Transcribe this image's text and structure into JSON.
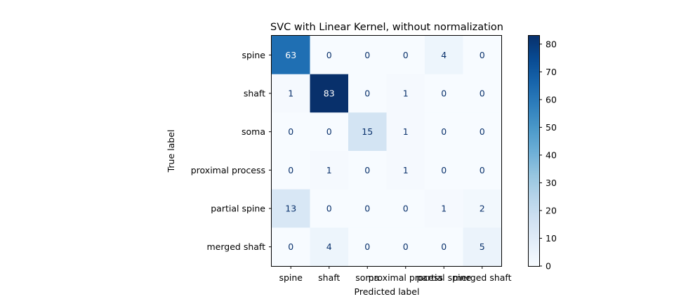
{
  "chart_data": {
    "type": "heatmap",
    "title": "SVC with Linear Kernel, without normalization",
    "xlabel": "Predicted label",
    "ylabel": "True label",
    "x_categories": [
      "spine",
      "shaft",
      "soma",
      "proximal process",
      "partial spine",
      "merged shaft"
    ],
    "y_categories": [
      "spine",
      "shaft",
      "soma",
      "proximal process",
      "partial spine",
      "merged shaft"
    ],
    "values": [
      [
        63,
        0,
        0,
        0,
        4,
        0
      ],
      [
        1,
        83,
        0,
        1,
        0,
        0
      ],
      [
        0,
        0,
        15,
        1,
        0,
        0
      ],
      [
        0,
        1,
        0,
        1,
        0,
        0
      ],
      [
        13,
        0,
        0,
        0,
        1,
        2
      ],
      [
        0,
        4,
        0,
        0,
        0,
        5
      ]
    ],
    "colormap": "Blues",
    "value_range": [
      0,
      83
    ],
    "colorbar_ticks": [
      0,
      10,
      20,
      30,
      40,
      50,
      60,
      70,
      80
    ]
  },
  "colors": {
    "text_dark": "#08306b",
    "text_light": "#ffffff",
    "frame": "#000000"
  }
}
